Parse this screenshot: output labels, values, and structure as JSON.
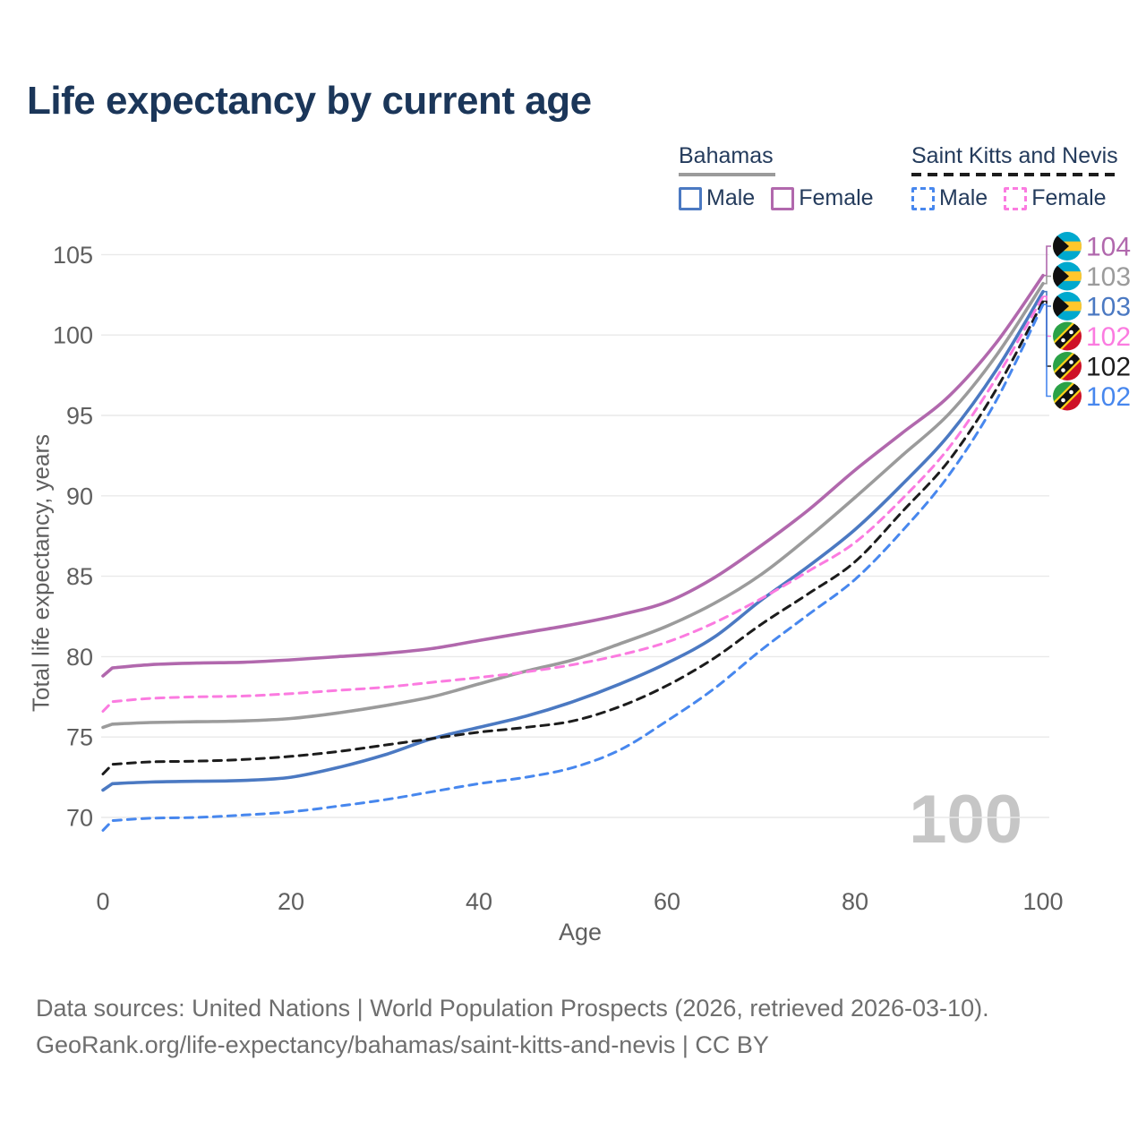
{
  "title": "Life expectancy by current age",
  "y_axis_title": "Total life expectancy, years",
  "x_axis_title": "Age",
  "watermark": {
    "highlight_age_label": "100"
  },
  "legend": {
    "groups": [
      {
        "label": "Bahamas",
        "sample_series_key": "bahamas_total",
        "sample_style": "solid",
        "items": [
          {
            "label": "Male",
            "series_key": "bahamas_male"
          },
          {
            "label": "Female",
            "series_key": "bahamas_female"
          }
        ]
      },
      {
        "label": "Saint Kitts and Nevis",
        "sample_series_key": "skn_total",
        "sample_style": "dashed",
        "items": [
          {
            "label": "Male",
            "series_key": "skn_male"
          },
          {
            "label": "Female",
            "series_key": "skn_female"
          }
        ]
      }
    ]
  },
  "end_labels": [
    {
      "value": "104",
      "series_key": "bahamas_female",
      "flag": "bahamas"
    },
    {
      "value": "103",
      "series_key": "bahamas_total",
      "flag": "bahamas"
    },
    {
      "value": "103",
      "series_key": "bahamas_male",
      "flag": "bahamas"
    },
    {
      "value": "102",
      "series_key": "skn_female",
      "flag": "skn"
    },
    {
      "value": "102",
      "series_key": "skn_total",
      "flag": "skn"
    },
    {
      "value": "102",
      "series_key": "skn_male",
      "flag": "skn"
    }
  ],
  "footer": {
    "line1": "Data sources: United Nations | World Population Prospects (2026, retrieved 2026-03-10).",
    "line2": "GeoRank.org/life-expectancy/bahamas/saint-kitts-and-nevis | CC BY"
  },
  "chart_data": {
    "type": "line",
    "title": "Life expectancy by current age",
    "xlabel": "Age",
    "ylabel": "Total life expectancy, years",
    "xlim": [
      0,
      100
    ],
    "ylim": [
      68.5,
      105.5
    ],
    "x_ticks": [
      0,
      20,
      40,
      60,
      80,
      100
    ],
    "y_ticks": [
      70,
      75,
      80,
      85,
      90,
      95,
      100,
      105
    ],
    "grid": true,
    "legend_position": "top-right",
    "highlight_age": 100,
    "x": [
      0,
      1,
      5,
      10,
      15,
      20,
      25,
      30,
      35,
      40,
      45,
      50,
      55,
      60,
      65,
      70,
      75,
      80,
      85,
      90,
      95,
      100
    ],
    "series": [
      {
        "key": "bahamas_female",
        "name": "Bahamas Female",
        "color": "#b168ad",
        "dash": "solid",
        "end_label": "104",
        "values": [
          78.8,
          79.3,
          79.5,
          79.6,
          79.65,
          79.8,
          80.0,
          80.2,
          80.5,
          81.0,
          81.5,
          82.0,
          82.6,
          83.4,
          84.9,
          86.9,
          89.1,
          91.6,
          93.9,
          96.2,
          99.5,
          103.7
        ]
      },
      {
        "key": "bahamas_total",
        "name": "Bahamas Both sexes",
        "color": "#9b9b9b",
        "dash": "solid",
        "end_label": "103",
        "values": [
          75.6,
          75.8,
          75.9,
          75.95,
          76.0,
          76.15,
          76.5,
          76.95,
          77.5,
          78.3,
          79.1,
          79.8,
          80.8,
          81.9,
          83.3,
          85.1,
          87.4,
          89.9,
          92.5,
          95.1,
          98.7,
          103.2
        ]
      },
      {
        "key": "bahamas_male",
        "name": "Bahamas Male",
        "color": "#4b79c2",
        "dash": "solid",
        "end_label": "103",
        "values": [
          71.7,
          72.1,
          72.2,
          72.25,
          72.3,
          72.5,
          73.1,
          73.9,
          74.9,
          75.6,
          76.3,
          77.2,
          78.3,
          79.6,
          81.2,
          83.5,
          85.6,
          87.9,
          90.7,
          93.8,
          97.8,
          102.7
        ]
      },
      {
        "key": "skn_female",
        "name": "Saint Kitts and Nevis Female",
        "color": "#fb7be0",
        "dash": "dashed",
        "end_label": "102",
        "values": [
          76.6,
          77.2,
          77.4,
          77.5,
          77.55,
          77.7,
          77.9,
          78.1,
          78.4,
          78.7,
          79.05,
          79.5,
          80.1,
          80.9,
          82.1,
          83.6,
          85.3,
          87.1,
          89.8,
          93.0,
          97.3,
          102.4
        ]
      },
      {
        "key": "skn_total",
        "name": "Saint Kitts and Nevis Both sexes",
        "color": "#1c1c1c",
        "dash": "dashed",
        "end_label": "102",
        "values": [
          72.7,
          73.3,
          73.45,
          73.5,
          73.6,
          73.8,
          74.1,
          74.5,
          74.9,
          75.3,
          75.6,
          76.0,
          76.9,
          78.2,
          79.9,
          82.0,
          83.9,
          85.9,
          89.0,
          92.2,
          96.6,
          102.1
        ]
      },
      {
        "key": "skn_male",
        "name": "Saint Kitts and Nevis Male",
        "color": "#4787ee",
        "dash": "dashed",
        "end_label": "102",
        "values": [
          69.2,
          69.8,
          69.95,
          70.0,
          70.15,
          70.35,
          70.7,
          71.1,
          71.6,
          72.1,
          72.5,
          73.1,
          74.2,
          76.0,
          78.0,
          80.4,
          82.6,
          84.8,
          87.8,
          91.3,
          95.9,
          101.9
        ]
      }
    ]
  }
}
